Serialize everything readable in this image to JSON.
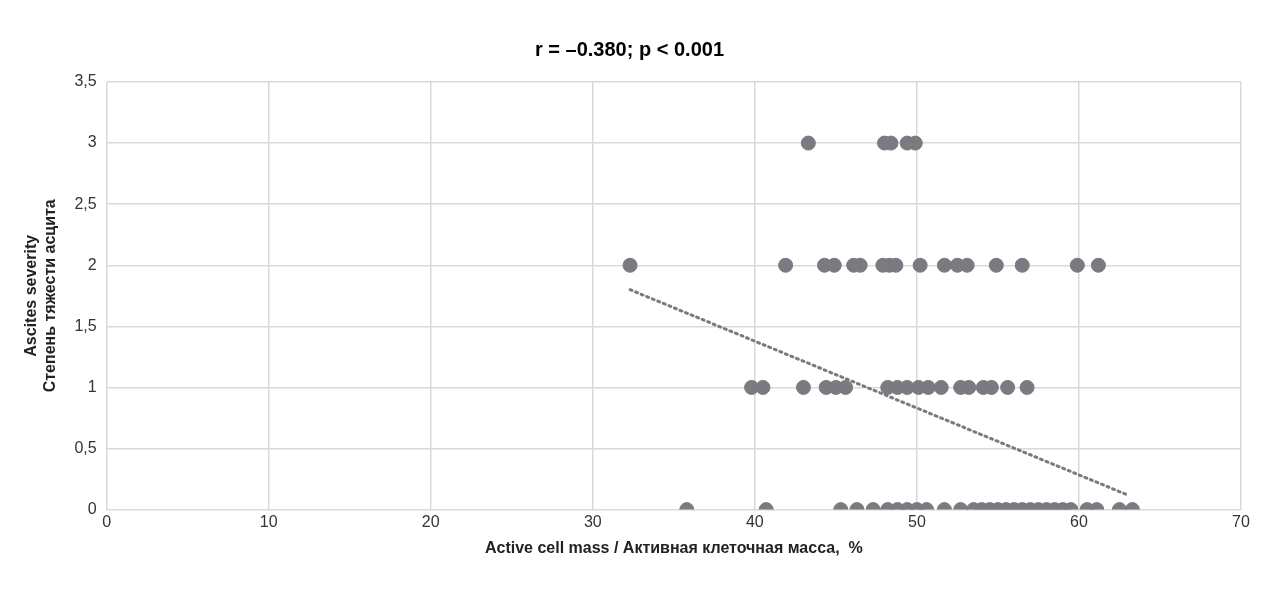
{
  "chart_data": {
    "type": "scatter",
    "title": "r = –0.380; p < 0.001",
    "xlabel": "Active cell mass / Активная клеточная масса,  %",
    "ylabel": "Ascites severity\nСтепень тяжести асцита",
    "xlim": [
      0,
      70
    ],
    "xticks": [
      0,
      10,
      20,
      30,
      40,
      50,
      60,
      70
    ],
    "ylim": [
      0,
      3.5
    ],
    "yticks": [
      0,
      {
        "value": 0.5,
        "label": "0,5"
      },
      1,
      {
        "value": 1.5,
        "label": "1,5"
      },
      2,
      {
        "value": 2.5,
        "label": "2,5"
      },
      3,
      {
        "value": 3.5,
        "label": "3,5"
      }
    ],
    "grid": true,
    "legend": false,
    "marker": "circle",
    "series": [
      {
        "type": "scatter",
        "color": "#7a7b80",
        "x": [
          43.3,
          48.0,
          48.4,
          49.4,
          49.9,
          32.3,
          41.9,
          44.3,
          44.9,
          46.1,
          46.5,
          47.9,
          48.3,
          48.7,
          50.2,
          51.7,
          52.5,
          53.1,
          54.9,
          56.5,
          59.9,
          61.2,
          39.8,
          40.5,
          43.0,
          44.4,
          45.0,
          45.6,
          48.2,
          48.8,
          49.4,
          50.1,
          50.7,
          51.5,
          52.7,
          53.2,
          54.1,
          54.6,
          55.6,
          56.8,
          35.8,
          40.7,
          45.3,
          46.3,
          47.3,
          48.2,
          48.8,
          49.4,
          50.0,
          50.6,
          51.7,
          52.7,
          53.5,
          54.0,
          54.5,
          55.0,
          55.5,
          56.0,
          56.5,
          57.0,
          57.5,
          58.0,
          58.5,
          59.0,
          59.5,
          60.5,
          61.1,
          62.5,
          63.3
        ],
        "values": [
          3,
          3,
          3,
          3,
          3,
          2,
          2,
          2,
          2,
          2,
          2,
          2,
          2,
          2,
          2,
          2,
          2,
          2,
          2,
          2,
          2,
          2,
          1,
          1,
          1,
          1,
          1,
          1,
          1,
          1,
          1,
          1,
          1,
          1,
          1,
          1,
          1,
          1,
          1,
          1,
          0,
          0,
          0,
          0,
          0,
          0,
          0,
          0,
          0,
          0,
          0,
          0,
          0,
          0,
          0,
          0,
          0,
          0,
          0,
          0,
          0,
          0,
          0,
          0,
          0,
          0,
          0,
          0,
          0
        ]
      },
      {
        "type": "line",
        "color": "#7a7b80",
        "line_style": "dotted",
        "marker": "none",
        "x": [
          32.3,
          63.0
        ],
        "values": [
          1.8,
          0.12
        ]
      }
    ]
  }
}
